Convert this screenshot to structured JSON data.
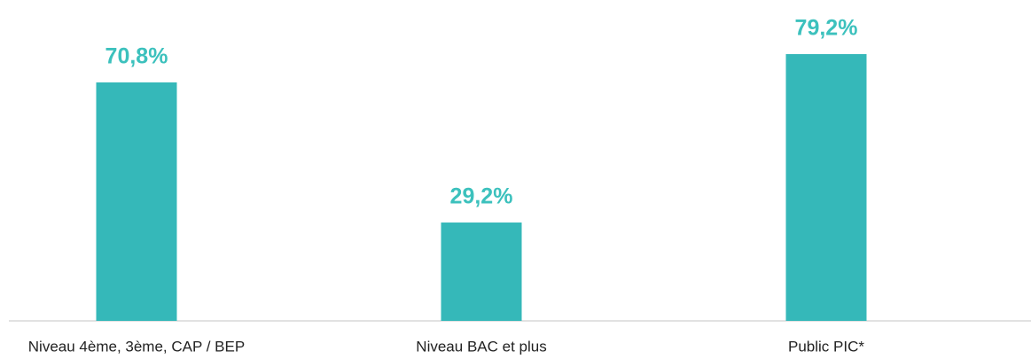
{
  "chart_data": {
    "type": "bar",
    "categories": [
      "Niveau 4ème, 3ème, CAP / BEP",
      "Niveau BAC et plus",
      "Public PIC*"
    ],
    "values": [
      70.8,
      29.2,
      79.2
    ],
    "value_labels": [
      "70,8%",
      "29,2%",
      "79,2%"
    ],
    "color": "#35b8b9"
  }
}
